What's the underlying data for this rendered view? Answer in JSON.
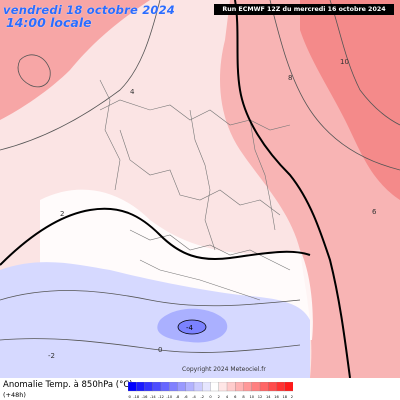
{
  "header": {
    "date_text": "vendredi 18 octobre 2024",
    "time_text": "14:00 locale",
    "run_text": "Run ECMWF 12Z du mercredi 16 octobre 2024"
  },
  "footer": {
    "title": "Anomalie Temp. à 850hPa (°C)",
    "subtitle": "(+48h)"
  },
  "copyright": "Copyright 2024 Meteociel.fr",
  "legend": {
    "ticks": [
      "-20",
      "-18",
      "-16",
      "-14",
      "-12",
      "-10",
      "-8",
      "-6",
      "-4",
      "-2",
      "0",
      "2",
      "4",
      "6",
      "8",
      "10",
      "12",
      "14",
      "16",
      "18",
      "20"
    ],
    "colors": [
      "#0000ff",
      "#1a1aff",
      "#3333ff",
      "#4d4dff",
      "#6666ff",
      "#8080ff",
      "#9999ff",
      "#b3b3ff",
      "#ccccff",
      "#e6e6ff",
      "#ffffff",
      "#ffe6e6",
      "#ffcccc",
      "#ffb3b3",
      "#ff9999",
      "#ff8080",
      "#ff6666",
      "#ff4d4d",
      "#ff3333",
      "#ff1a1a"
    ]
  },
  "map_labels": [
    "10",
    "8",
    "4",
    "-4",
    "-2",
    "0",
    "2",
    "6"
  ],
  "colors": {
    "title_blue": "#2b6cff",
    "warm": "#f8a8a8",
    "cool": "#cfd4ff"
  }
}
